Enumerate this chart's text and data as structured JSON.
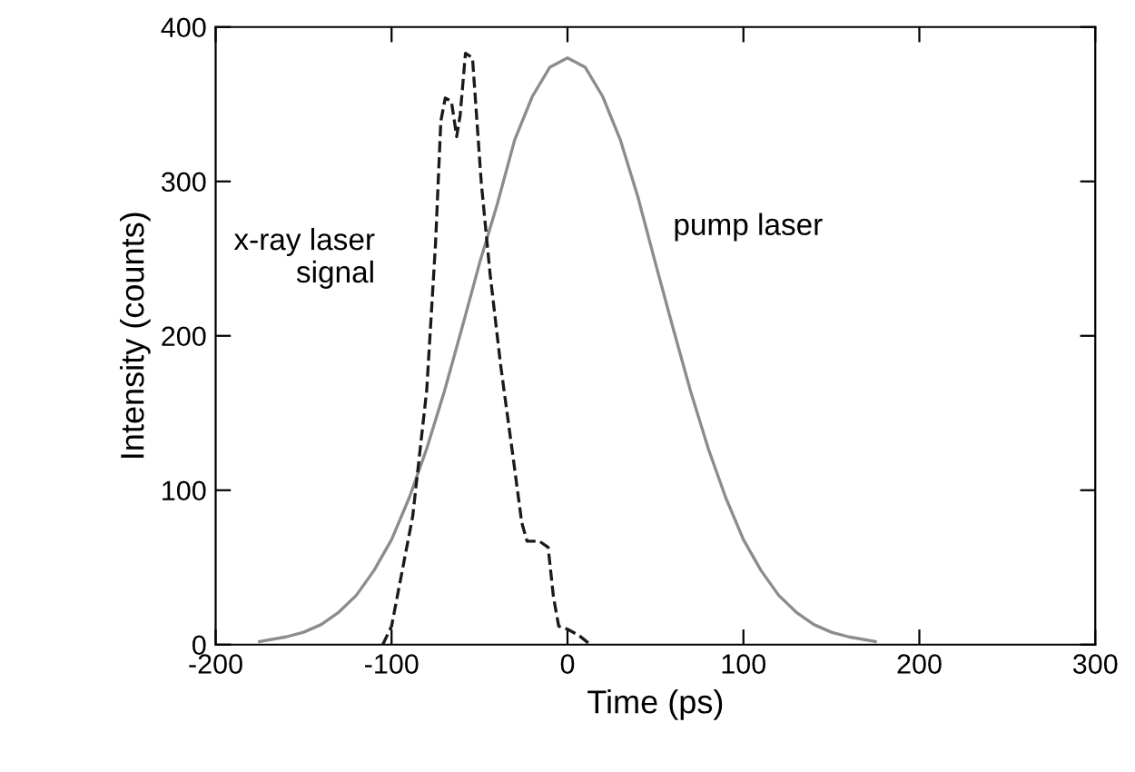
{
  "chart_data": {
    "type": "line",
    "xlabel": "Time (ps)",
    "ylabel": "Intensity (counts)",
    "xlim": [
      -200,
      300
    ],
    "xticks": [
      -200,
      -100,
      0,
      100,
      200,
      300
    ],
    "ylim": [
      0,
      400
    ],
    "yticks": [
      0,
      100,
      200,
      300,
      400
    ],
    "grid": false,
    "legend": false,
    "marker": "none",
    "series": [
      {
        "name": "pump laser",
        "color": "#8c8c8c",
        "line_style": "solid",
        "x": [
          -175,
          -160,
          -150,
          -140,
          -130,
          -120,
          -110,
          -100,
          -90,
          -80,
          -70,
          -60,
          -50,
          -40,
          -30,
          -20,
          -10,
          0,
          10,
          20,
          30,
          40,
          50,
          60,
          70,
          80,
          90,
          100,
          110,
          120,
          130,
          140,
          150,
          160,
          175
        ],
        "values": [
          2,
          5,
          8,
          13,
          21,
          32,
          48,
          68,
          95,
          127,
          164,
          205,
          247,
          285,
          327,
          355,
          374,
          380,
          374,
          355,
          327,
          290,
          247,
          205,
          164,
          127,
          95,
          68,
          48,
          32,
          21,
          13,
          8,
          5,
          2
        ]
      },
      {
        "name": "x-ray laser\nsignal",
        "color": "#1a1a1a",
        "line_style": "dashed",
        "x": [
          -105,
          -100,
          -88,
          -80,
          -75,
          -72,
          -69.5,
          -66,
          -63,
          -61,
          -58,
          -54,
          -49,
          -44,
          -38,
          -31,
          -26,
          -23,
          -16,
          -11,
          -8,
          -5,
          0,
          6.5,
          13
        ],
        "values": [
          0,
          12,
          83,
          165,
          260,
          339,
          354,
          352,
          329,
          343,
          383,
          380,
          299,
          240,
          181,
          122,
          79,
          67,
          67,
          63,
          31,
          12,
          10,
          6,
          0
        ]
      }
    ]
  }
}
